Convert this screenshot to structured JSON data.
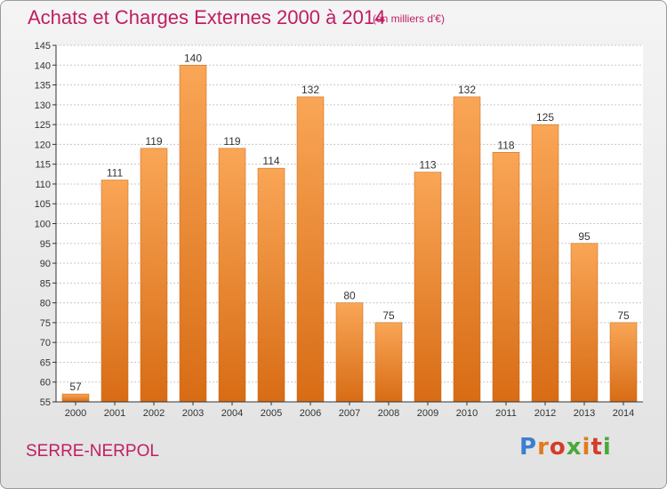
{
  "title": "Achats et Charges Externes 2000 à 2014",
  "subtitle": "(en milliers d'€)",
  "location": "SERRE-NERPOL",
  "logo": {
    "text": "Proxiti",
    "letter_colors": [
      "#3a7fd0",
      "#e37a1c",
      "#d33c2b",
      "#4aa83a",
      "#e37a1c",
      "#d33c2b",
      "#4aa83a"
    ]
  },
  "colors": {
    "bar_light": "#f9a656",
    "bar_dark": "#d86c15",
    "title": "#bf1e63",
    "grid": "#c8c8c8",
    "axis": "#333333"
  },
  "chart_data": {
    "type": "bar",
    "categories": [
      "2000",
      "2001",
      "2002",
      "2003",
      "2004",
      "2005",
      "2006",
      "2007",
      "2008",
      "2009",
      "2010",
      "2011",
      "2012",
      "2013",
      "2014"
    ],
    "values": [
      57,
      111,
      119,
      140,
      119,
      114,
      132,
      80,
      75,
      113,
      132,
      118,
      125,
      95,
      75
    ],
    "ylim": [
      55,
      145
    ],
    "yticks": [
      55,
      60,
      65,
      70,
      75,
      80,
      85,
      90,
      95,
      100,
      105,
      110,
      115,
      120,
      125,
      130,
      135,
      140,
      145
    ],
    "grid": true,
    "xlabel": "",
    "ylabel": ""
  }
}
